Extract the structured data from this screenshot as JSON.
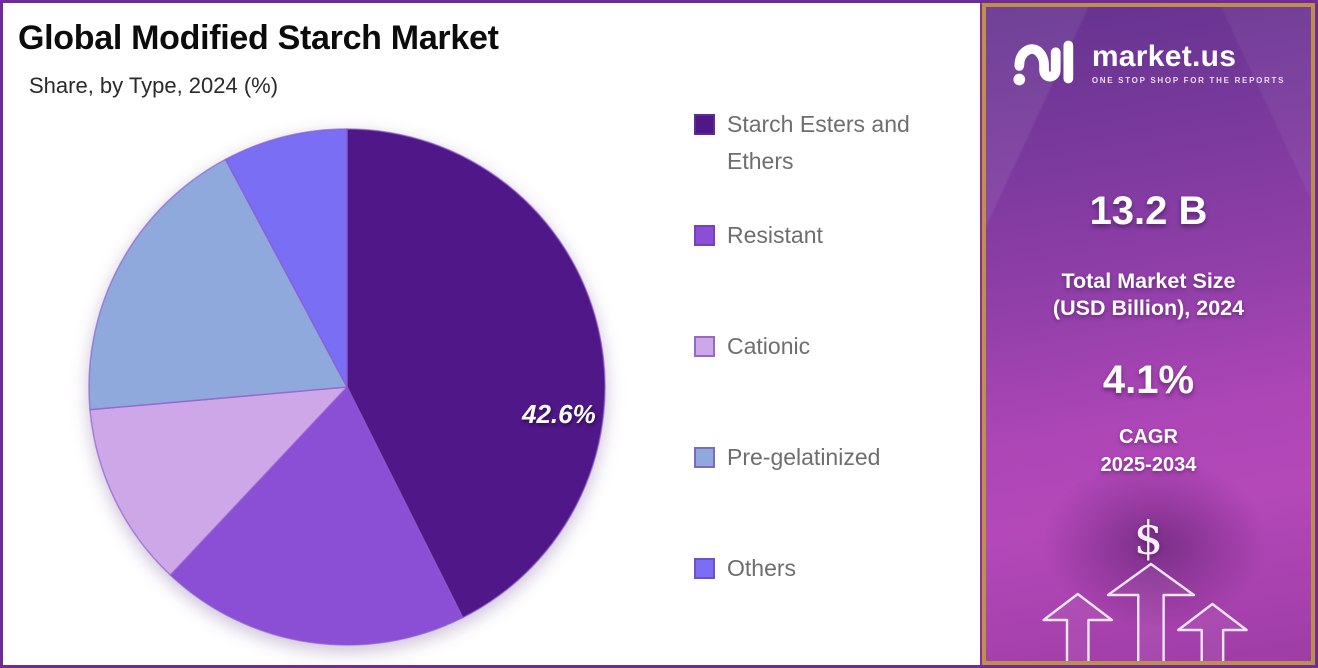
{
  "frame": {
    "border_color": "#702b96",
    "sidebar_border_color": "#bd904c"
  },
  "header": {
    "title": "Global Modified Starch Market",
    "subtitle": "Share, by Type, 2024 (%)"
  },
  "chart_data": {
    "type": "pie",
    "title": "Global Modified Starch Market Share, by Type, 2024 (%)",
    "unit": "%",
    "direction": "clockwise",
    "start_angle_deg": 0,
    "legend_position": "right",
    "slices": [
      {
        "label": "Starch Esters and Ethers",
        "value": 42.6,
        "data_label": "42.6%",
        "color": "#4f1787"
      },
      {
        "label": "Resistant",
        "value": 19.4,
        "data_label": "",
        "color": "#8b4fd6"
      },
      {
        "label": "Cationic",
        "value": 11.6,
        "data_label": "",
        "color": "#cda7e8"
      },
      {
        "label": "Pre-gelatinized",
        "value": 18.6,
        "data_label": "",
        "color": "#90a9dd"
      },
      {
        "label": "Others",
        "value": 7.8,
        "data_label": "",
        "color": "#7a6ef5"
      }
    ]
  },
  "sidebar": {
    "brand": {
      "name": "market.us",
      "tagline": "ONE STOP SHOP FOR THE REPORTS"
    },
    "market_size_value": "13.2 B",
    "market_size_label_line1": "Total Market Size",
    "market_size_label_line2": "(USD Billion), 2024",
    "cagr_value": "4.1%",
    "cagr_label_line1": "CAGR",
    "cagr_label_line2": "2025-2034",
    "dollar_symbol": "$"
  }
}
